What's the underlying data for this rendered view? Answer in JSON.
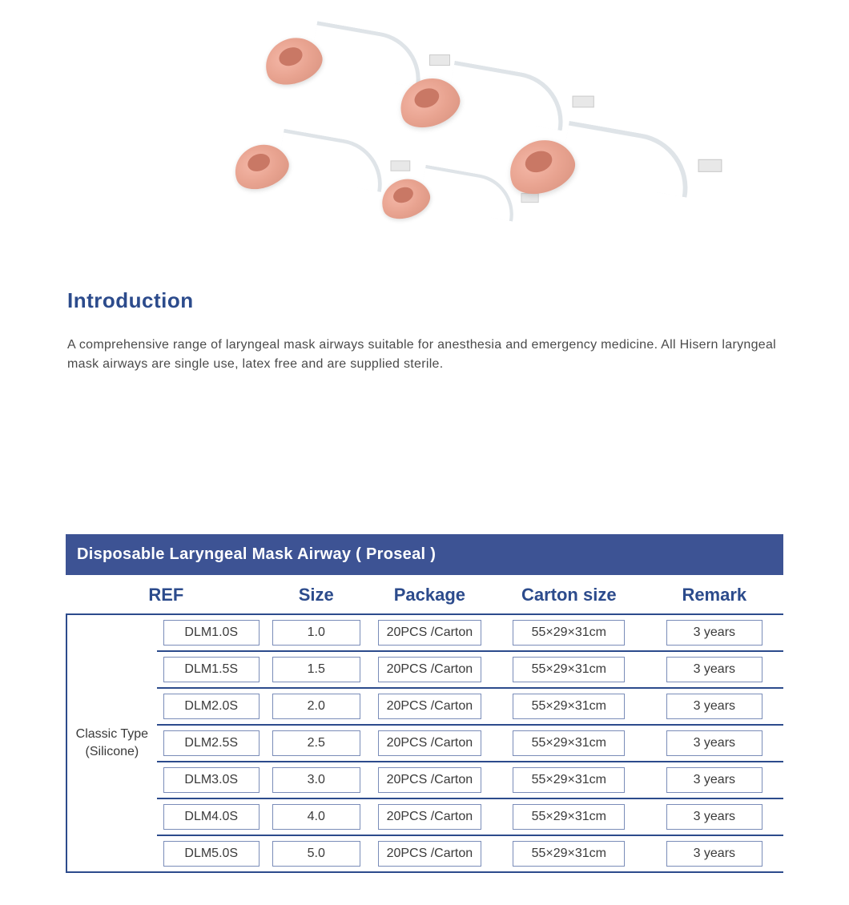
{
  "colors": {
    "heading": "#2c4b8c",
    "body_text": "#4a4a4a",
    "titlebar_bg": "#3d5394",
    "titlebar_text": "#ffffff",
    "cell_border": "#7a8cb8",
    "table_rule": "#2c4b8c",
    "background": "#ffffff",
    "cuff": "#e8a390"
  },
  "typography": {
    "heading_fontsize_pt": 20,
    "body_fontsize_pt": 12,
    "th_fontsize_pt": 16,
    "cell_fontsize_pt": 12,
    "titlebar_fontsize_pt": 15
  },
  "image": {
    "description": "Five disposable silicone laryngeal mask airways of varying sizes arranged on white background; each has a pink/salmon silicone cuff, clear curved airway tube, white inflation valve, and translucent connector.",
    "count": 5
  },
  "intro": {
    "heading": "Introduction",
    "text": "A comprehensive range of laryngeal mask airways suitable for anesthesia and emergency medicine. All Hisern laryngeal mask airways are single use, latex free and are supplied sterile."
  },
  "table": {
    "title": "Disposable Laryngeal Mask Airway ( Proseal )",
    "type_label_line1": "Classic Type",
    "type_label_line2": "(Silicone)",
    "columns": [
      "REF",
      "Size",
      "Package",
      "Carton  size",
      "Remark"
    ],
    "column_widths_pct": [
      26,
      14,
      18,
      22,
      20
    ],
    "rows": [
      {
        "ref": "DLM1.0S",
        "size": "1.0",
        "package": "20PCS /Carton",
        "carton_size": "55×29×31cm",
        "remark": "3 years"
      },
      {
        "ref": "DLM1.5S",
        "size": "1.5",
        "package": "20PCS /Carton",
        "carton_size": "55×29×31cm",
        "remark": "3 years"
      },
      {
        "ref": "DLM2.0S",
        "size": "2.0",
        "package": "20PCS /Carton",
        "carton_size": "55×29×31cm",
        "remark": "3 years"
      },
      {
        "ref": "DLM2.5S",
        "size": "2.5",
        "package": "20PCS /Carton",
        "carton_size": "55×29×31cm",
        "remark": "3 years"
      },
      {
        "ref": "DLM3.0S",
        "size": "3.0",
        "package": "20PCS /Carton",
        "carton_size": "55×29×31cm",
        "remark": "3 years"
      },
      {
        "ref": "DLM4.0S",
        "size": "4.0",
        "package": "20PCS /Carton",
        "carton_size": "55×29×31cm",
        "remark": "3 years"
      },
      {
        "ref": "DLM5.0S",
        "size": "5.0",
        "package": "20PCS /Carton",
        "carton_size": "55×29×31cm",
        "remark": "3 years"
      }
    ]
  }
}
